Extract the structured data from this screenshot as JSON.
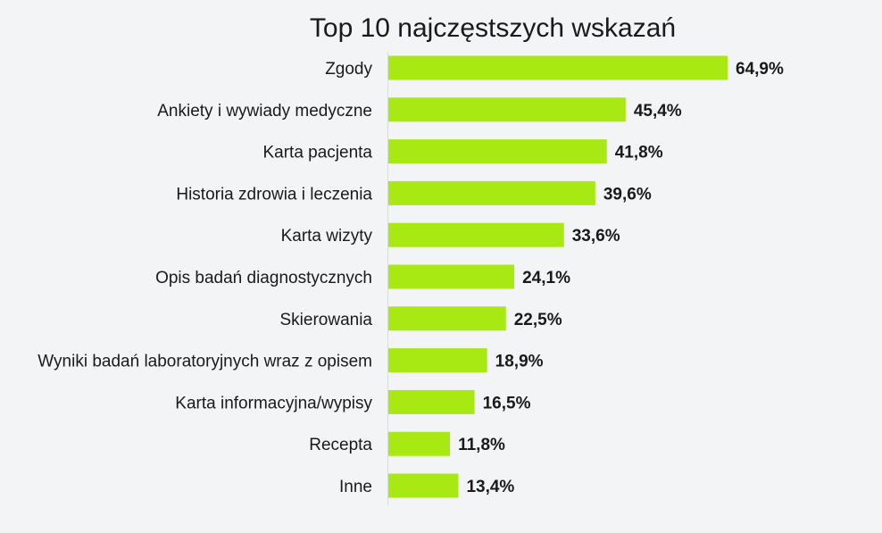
{
  "chart_data": {
    "type": "bar",
    "orientation": "horizontal",
    "title": "Top 10 najczęstszych wskazań",
    "xlabel": "",
    "ylabel": "",
    "xlim": [
      0,
      64.9
    ],
    "grid": false,
    "bar_color": "#a8e813",
    "categories": [
      "Zgody",
      "Ankiety i wywiady medyczne",
      "Karta pacjenta",
      "Historia zdrowia i leczenia",
      "Karta wizyty",
      "Opis badań diagnostycznych",
      "Skierowania",
      "Wyniki badań laboratoryjnych wraz z opisem",
      "Karta informacyjna/wypisy",
      "Recepta",
      "Inne"
    ],
    "values": [
      64.9,
      45.4,
      41.8,
      39.6,
      33.6,
      24.1,
      22.5,
      18.9,
      16.5,
      11.8,
      13.4
    ],
    "value_labels": [
      "64,9%",
      "45,4%",
      "41,8%",
      "39,6%",
      "33,6%",
      "24,1%",
      "22,5%",
      "18,9%",
      "16,5%",
      "11,8%",
      "13,4%"
    ]
  }
}
